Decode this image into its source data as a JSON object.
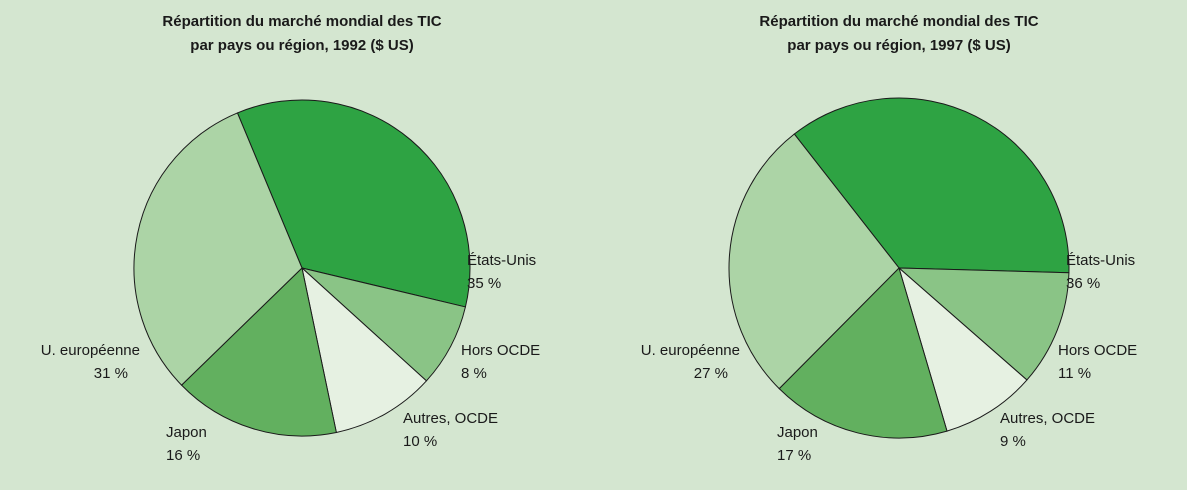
{
  "chart_data": [
    {
      "type": "pie",
      "title": [
        "Répartition du marché mondial des TIC",
        "par pays ou région, 1992 ($ US)"
      ],
      "categories": [
        "États-Unis",
        "Hors OCDE",
        "Autres, OCDE",
        "Japon",
        "U. européenne"
      ],
      "values": [
        35,
        8,
        10,
        16,
        31
      ],
      "value_labels": [
        "35 %",
        "8 %",
        "10 %",
        "16 %",
        "31 %"
      ],
      "colors": [
        "#2ea343",
        "#8ac486",
        "#e6f1e2",
        "#62b05f",
        "#acd4a6"
      ]
    },
    {
      "type": "pie",
      "title": [
        "Répartition du marché mondial des TIC",
        "par pays ou région, 1997 ($ US)"
      ],
      "categories": [
        "États-Unis",
        "Hors OCDE",
        "Autres, OCDE",
        "Japon",
        "U. européenne"
      ],
      "values": [
        36,
        11,
        9,
        17,
        27
      ],
      "value_labels": [
        "36 %",
        "11 %",
        "9 %",
        "17 %",
        "27 %"
      ],
      "colors": [
        "#2ea343",
        "#8ac486",
        "#e6f1e2",
        "#62b05f",
        "#acd4a6"
      ]
    }
  ]
}
